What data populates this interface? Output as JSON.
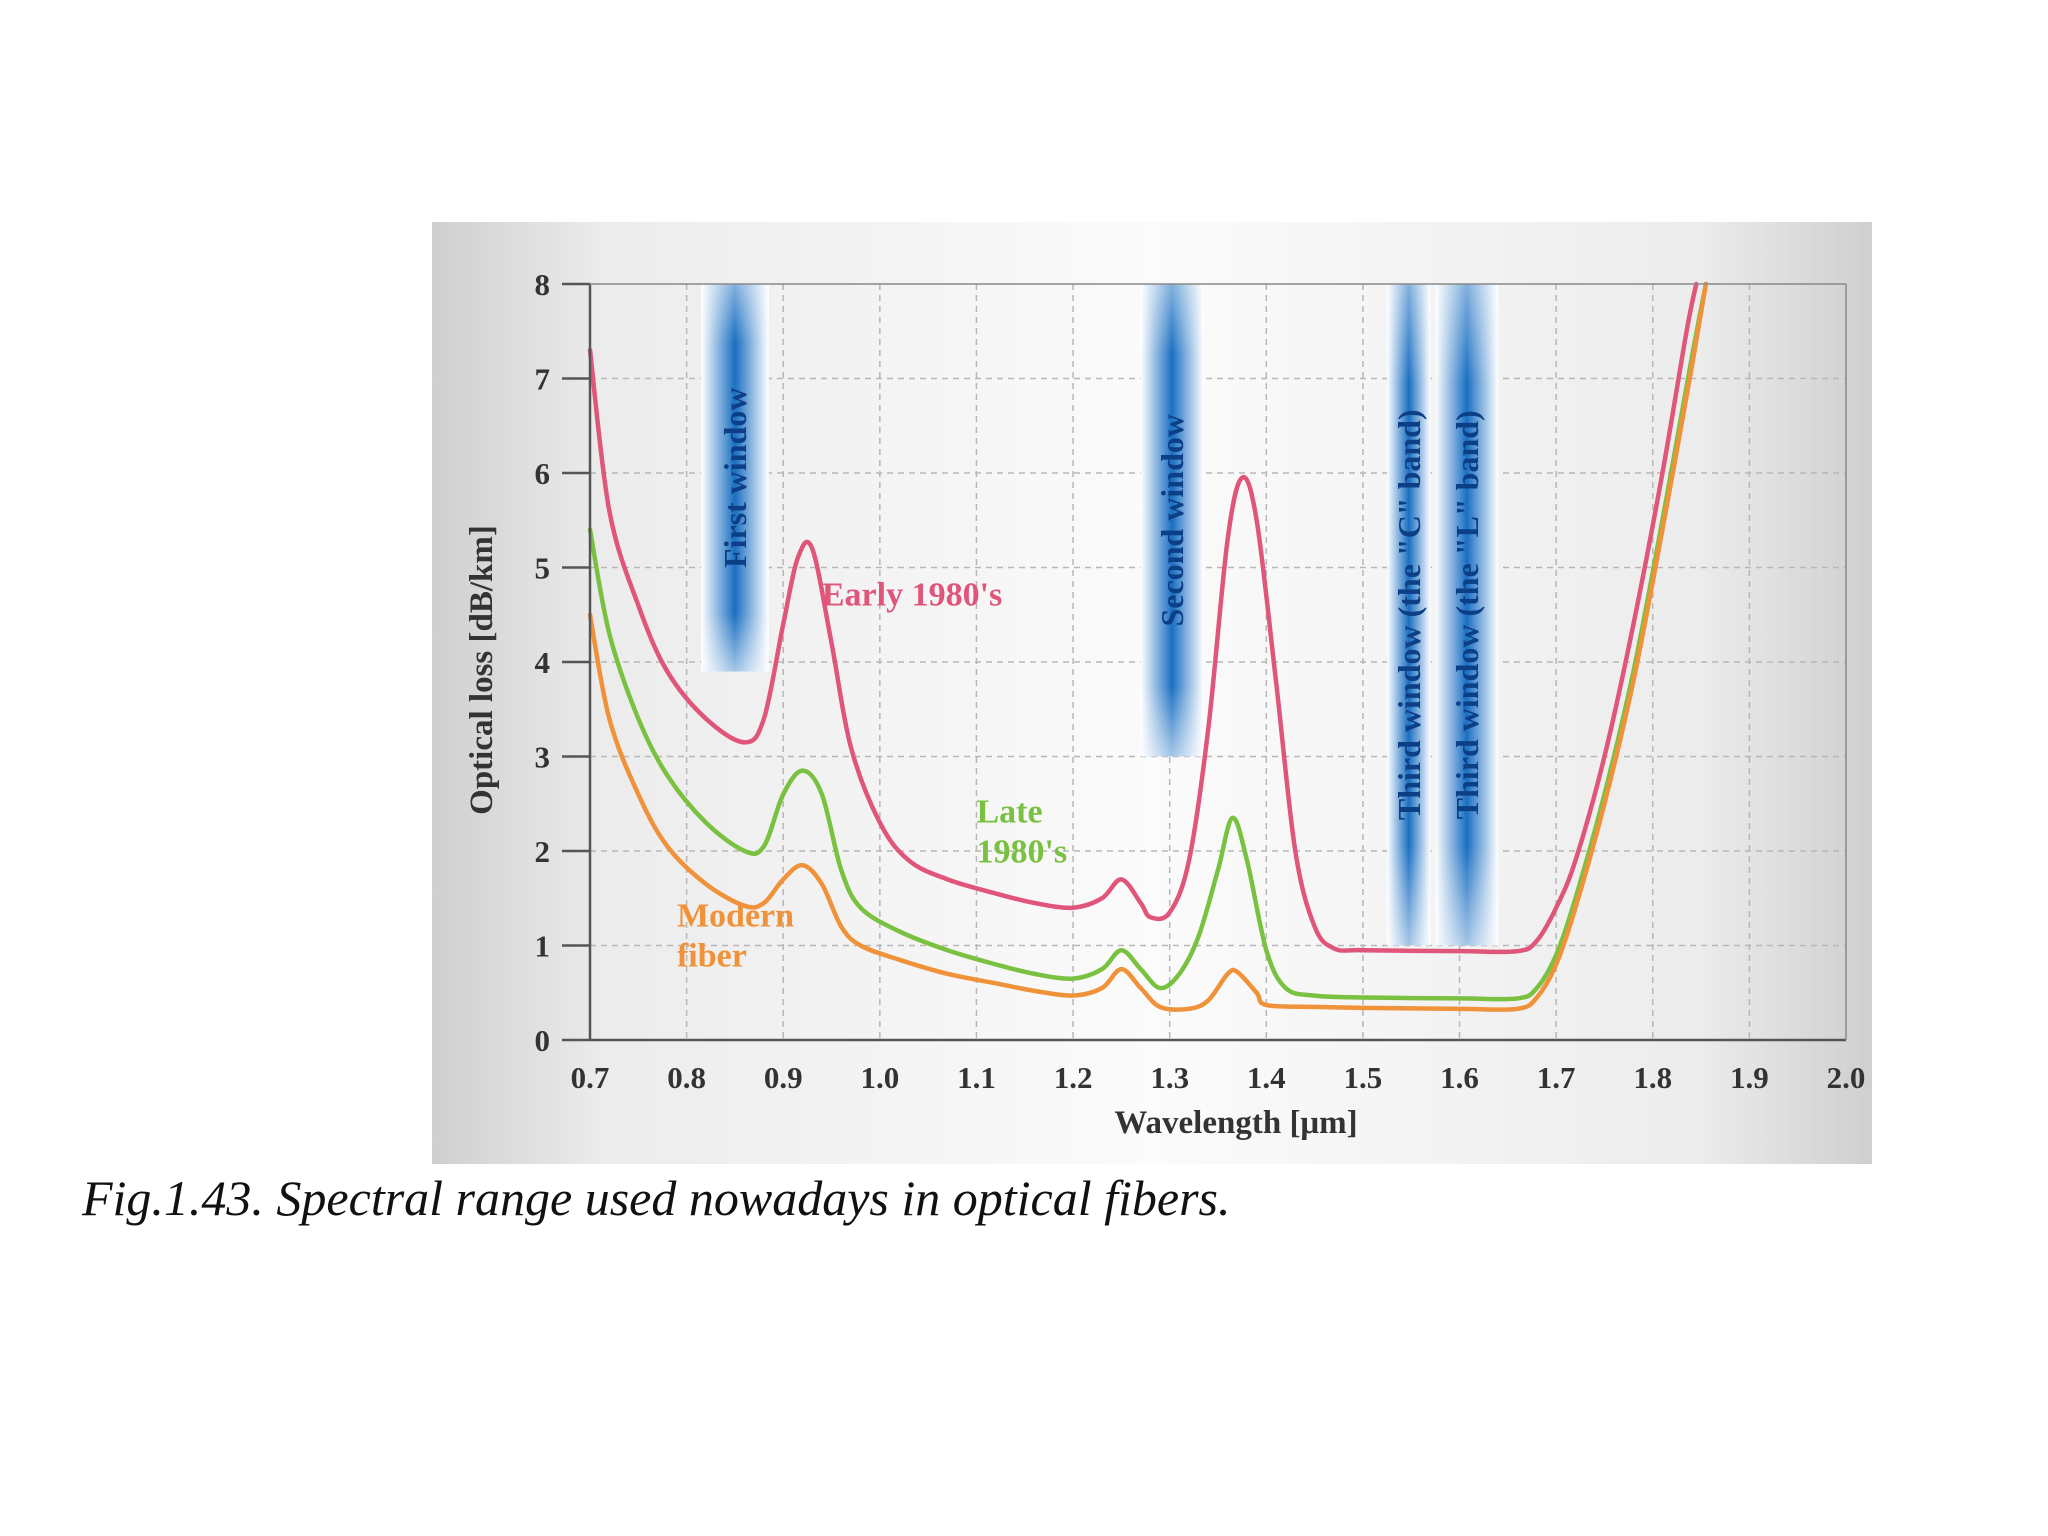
{
  "caption": "Fig.1.43. Spectral range used nowadays in optical fibers.",
  "chart_data": {
    "type": "line",
    "title": "",
    "xlabel": "Wavelength [μm]",
    "ylabel": "Optical loss [dB/km]",
    "xlim": [
      0.7,
      2.0
    ],
    "ylim": [
      0,
      8
    ],
    "x_ticks": [
      "0.7",
      "0.8",
      "0.9",
      "1.0",
      "1.1",
      "1.2",
      "1.3",
      "1.4",
      "1.5",
      "1.6",
      "1.7",
      "1.8",
      "1.9",
      "2.0"
    ],
    "y_ticks": [
      "0",
      "1",
      "2",
      "3",
      "4",
      "5",
      "6",
      "7",
      "8"
    ],
    "grid": true,
    "windows": [
      {
        "label": "First window",
        "x": [
          0.815,
          0.885
        ],
        "y": [
          3.9,
          8.0
        ]
      },
      {
        "label": "Second window",
        "x": [
          1.27,
          1.335
        ],
        "y": [
          3.0,
          8.0
        ]
      },
      {
        "label": "Third window (the \"C\" band)",
        "x": [
          1.525,
          1.57
        ],
        "y": [
          1.0,
          8.0
        ]
      },
      {
        "label": "Third window (the \"L\" band)",
        "x": [
          1.575,
          1.64
        ],
        "y": [
          1.0,
          8.0
        ]
      }
    ],
    "series": [
      {
        "label_lines": [
          "Early 1980's"
        ],
        "label_anchor": [
          0.94,
          4.6
        ],
        "color": "#e0557a",
        "points": [
          [
            0.7,
            7.3
          ],
          [
            0.72,
            5.6
          ],
          [
            0.75,
            4.6
          ],
          [
            0.78,
            3.9
          ],
          [
            0.82,
            3.4
          ],
          [
            0.86,
            3.15
          ],
          [
            0.88,
            3.4
          ],
          [
            0.9,
            4.4
          ],
          [
            0.915,
            5.1
          ],
          [
            0.93,
            5.2
          ],
          [
            0.95,
            4.2
          ],
          [
            0.97,
            3.1
          ],
          [
            1.0,
            2.3
          ],
          [
            1.03,
            1.9
          ],
          [
            1.07,
            1.7
          ],
          [
            1.12,
            1.55
          ],
          [
            1.16,
            1.45
          ],
          [
            1.2,
            1.4
          ],
          [
            1.23,
            1.5
          ],
          [
            1.25,
            1.7
          ],
          [
            1.27,
            1.45
          ],
          [
            1.28,
            1.3
          ],
          [
            1.3,
            1.35
          ],
          [
            1.32,
            1.9
          ],
          [
            1.34,
            3.3
          ],
          [
            1.36,
            5.3
          ],
          [
            1.375,
            5.95
          ],
          [
            1.39,
            5.5
          ],
          [
            1.41,
            3.8
          ],
          [
            1.43,
            2.0
          ],
          [
            1.45,
            1.2
          ],
          [
            1.47,
            0.97
          ],
          [
            1.5,
            0.95
          ],
          [
            1.6,
            0.94
          ],
          [
            1.66,
            0.94
          ],
          [
            1.68,
            1.05
          ],
          [
            1.7,
            1.4
          ],
          [
            1.72,
            1.9
          ],
          [
            1.75,
            3.0
          ],
          [
            1.78,
            4.4
          ],
          [
            1.81,
            6.0
          ],
          [
            1.835,
            7.5
          ],
          [
            1.845,
            8.0
          ]
        ]
      },
      {
        "label_lines": [
          "Late",
          "1980's"
        ],
        "label_anchor": [
          1.1,
          2.3
        ],
        "color": "#7ac142",
        "points": [
          [
            0.7,
            5.4
          ],
          [
            0.72,
            4.3
          ],
          [
            0.75,
            3.4
          ],
          [
            0.78,
            2.8
          ],
          [
            0.82,
            2.3
          ],
          [
            0.86,
            2.0
          ],
          [
            0.88,
            2.05
          ],
          [
            0.9,
            2.6
          ],
          [
            0.92,
            2.85
          ],
          [
            0.94,
            2.6
          ],
          [
            0.96,
            1.8
          ],
          [
            0.98,
            1.4
          ],
          [
            1.02,
            1.15
          ],
          [
            1.07,
            0.95
          ],
          [
            1.12,
            0.8
          ],
          [
            1.16,
            0.7
          ],
          [
            1.2,
            0.65
          ],
          [
            1.23,
            0.75
          ],
          [
            1.25,
            0.95
          ],
          [
            1.27,
            0.75
          ],
          [
            1.29,
            0.55
          ],
          [
            1.31,
            0.7
          ],
          [
            1.33,
            1.1
          ],
          [
            1.35,
            1.8
          ],
          [
            1.365,
            2.35
          ],
          [
            1.38,
            1.9
          ],
          [
            1.4,
            0.95
          ],
          [
            1.42,
            0.55
          ],
          [
            1.45,
            0.47
          ],
          [
            1.5,
            0.45
          ],
          [
            1.6,
            0.44
          ],
          [
            1.66,
            0.44
          ],
          [
            1.68,
            0.55
          ],
          [
            1.7,
            0.9
          ],
          [
            1.72,
            1.5
          ],
          [
            1.75,
            2.6
          ],
          [
            1.78,
            3.9
          ],
          [
            1.81,
            5.5
          ],
          [
            1.84,
            7.2
          ],
          [
            1.855,
            8.0
          ]
        ]
      },
      {
        "label_lines": [
          "Modern",
          "fiber"
        ],
        "label_anchor": [
          0.79,
          1.2
        ],
        "color": "#f0923a",
        "points": [
          [
            0.7,
            4.5
          ],
          [
            0.72,
            3.4
          ],
          [
            0.75,
            2.6
          ],
          [
            0.78,
            2.05
          ],
          [
            0.82,
            1.65
          ],
          [
            0.86,
            1.42
          ],
          [
            0.88,
            1.45
          ],
          [
            0.9,
            1.7
          ],
          [
            0.92,
            1.85
          ],
          [
            0.94,
            1.65
          ],
          [
            0.96,
            1.2
          ],
          [
            0.98,
            1.0
          ],
          [
            1.02,
            0.85
          ],
          [
            1.07,
            0.7
          ],
          [
            1.12,
            0.6
          ],
          [
            1.16,
            0.52
          ],
          [
            1.2,
            0.47
          ],
          [
            1.23,
            0.55
          ],
          [
            1.25,
            0.75
          ],
          [
            1.27,
            0.55
          ],
          [
            1.29,
            0.35
          ],
          [
            1.32,
            0.33
          ],
          [
            1.34,
            0.42
          ],
          [
            1.36,
            0.7
          ],
          [
            1.37,
            0.72
          ],
          [
            1.39,
            0.5
          ],
          [
            1.4,
            0.37
          ],
          [
            1.45,
            0.35
          ],
          [
            1.5,
            0.34
          ],
          [
            1.6,
            0.33
          ],
          [
            1.66,
            0.33
          ],
          [
            1.68,
            0.45
          ],
          [
            1.7,
            0.8
          ],
          [
            1.72,
            1.4
          ],
          [
            1.75,
            2.5
          ],
          [
            1.78,
            3.8
          ],
          [
            1.81,
            5.4
          ],
          [
            1.84,
            7.1
          ],
          [
            1.855,
            8.0
          ]
        ]
      }
    ]
  }
}
